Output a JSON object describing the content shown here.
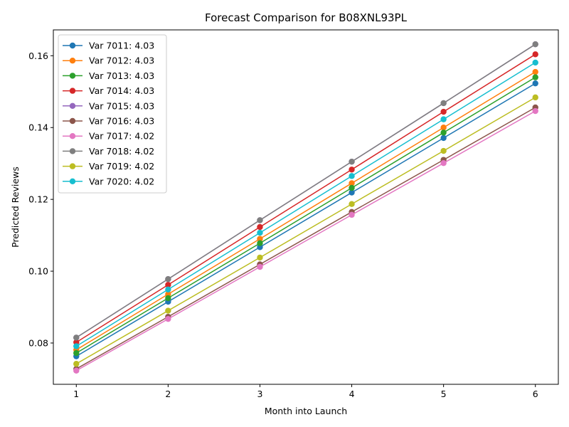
{
  "chart_data": {
    "type": "line",
    "title": "Forecast Comparison for B08XNL93PL",
    "xlabel": "Month into Launch",
    "ylabel": "Predicted Reviews",
    "x": [
      1,
      2,
      3,
      4,
      5,
      6
    ],
    "xlim": [
      0.75,
      6.25
    ],
    "ylim": [
      0.0685,
      0.1672
    ],
    "xticks": [
      1,
      2,
      3,
      4,
      5,
      6
    ],
    "yticks": [
      0.08,
      0.1,
      0.12,
      0.14,
      0.16
    ],
    "ytick_labels": [
      "0.08",
      "0.10",
      "0.12",
      "0.14",
      "0.16"
    ],
    "grid": false,
    "legend_position": "upper-left",
    "series": [
      {
        "name": "Var 7011: 4.03",
        "color": "#1f77b4",
        "values": [
          0.0763,
          0.0915,
          0.1067,
          0.1219,
          0.1371,
          0.1523
        ]
      },
      {
        "name": "Var 7012: 4.03",
        "color": "#ff7f0e",
        "values": [
          0.0781,
          0.0936,
          0.109,
          0.1245,
          0.14,
          0.1555
        ]
      },
      {
        "name": "Var 7013: 4.03",
        "color": "#2ca02c",
        "values": [
          0.0772,
          0.0925,
          0.1078,
          0.1232,
          0.1386,
          0.154
        ]
      },
      {
        "name": "Var 7014: 4.03",
        "color": "#d62728",
        "values": [
          0.0802,
          0.0962,
          0.1123,
          0.1283,
          0.1444,
          0.1604
        ]
      },
      {
        "name": "Var 7015: 4.03",
        "color": "#9467bd",
        "values": [
          0.0815,
          0.0978,
          0.1142,
          0.1305,
          0.1468,
          0.1632
        ]
      },
      {
        "name": "Var 7016: 4.03",
        "color": "#8c564b",
        "values": [
          0.0728,
          0.0873,
          0.1019,
          0.1165,
          0.131,
          0.1456
        ]
      },
      {
        "name": "Var 7017: 4.02",
        "color": "#e377c2",
        "values": [
          0.0723,
          0.0867,
          0.1012,
          0.1157,
          0.1301,
          0.1446
        ]
      },
      {
        "name": "Var 7018: 4.02",
        "color": "#7f7f7f",
        "values": [
          0.0815,
          0.0978,
          0.1142,
          0.1305,
          0.1468,
          0.1632
        ]
      },
      {
        "name": "Var 7019: 4.02",
        "color": "#bcbd22",
        "values": [
          0.0742,
          0.089,
          0.1038,
          0.1187,
          0.1335,
          0.1484
        ]
      },
      {
        "name": "Var 7020: 4.02",
        "color": "#17becf",
        "values": [
          0.0791,
          0.0949,
          0.1107,
          0.1265,
          0.1423,
          0.1581
        ]
      }
    ]
  }
}
